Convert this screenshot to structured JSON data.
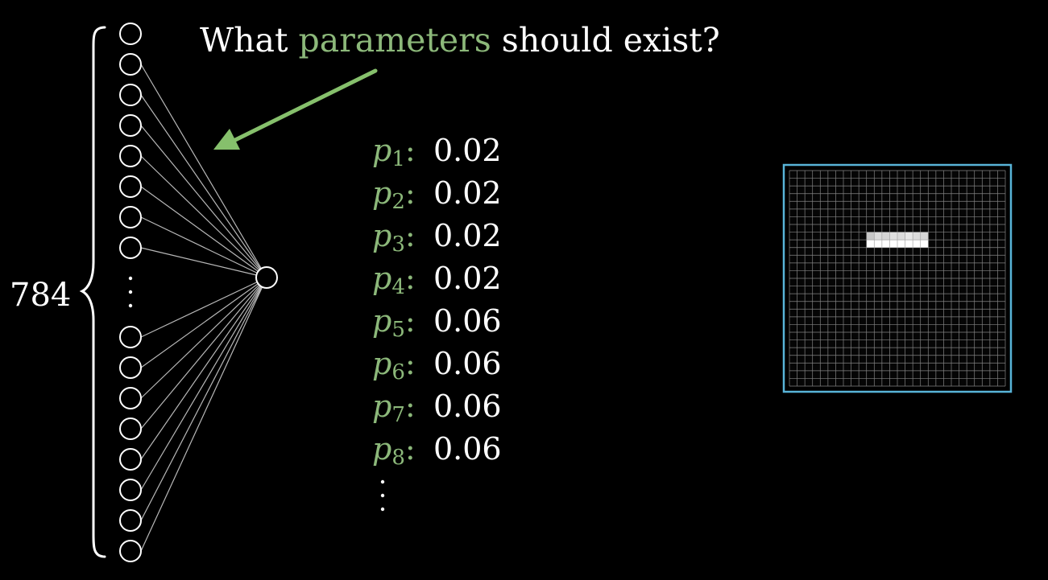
{
  "question": {
    "before": "What ",
    "highlight": "parameters",
    "after": " should exist?"
  },
  "input_count_label": "784",
  "parameters": [
    {
      "symbol": "p",
      "subscript": "1",
      "value": "0.02"
    },
    {
      "symbol": "p",
      "subscript": "2",
      "value": "0.02"
    },
    {
      "symbol": "p",
      "subscript": "3",
      "value": "0.02"
    },
    {
      "symbol": "p",
      "subscript": "4",
      "value": "0.02"
    },
    {
      "symbol": "p",
      "subscript": "5",
      "value": "0.06"
    },
    {
      "symbol": "p",
      "subscript": "6",
      "value": "0.06"
    },
    {
      "symbol": "p",
      "subscript": "7",
      "value": "0.06"
    },
    {
      "symbol": "p",
      "subscript": "8",
      "value": "0.06"
    }
  ],
  "network": {
    "visible_inputs_top": 8,
    "visible_inputs_bottom": 8,
    "output_neurons": 1
  },
  "pixel_grid": {
    "rows": 28,
    "cols": 28,
    "lit_cells": [
      {
        "row": 8,
        "col": 10,
        "brightness": 0.78
      },
      {
        "row": 8,
        "col": 11,
        "brightness": 0.86
      },
      {
        "row": 8,
        "col": 12,
        "brightness": 0.84
      },
      {
        "row": 8,
        "col": 13,
        "brightness": 0.88
      },
      {
        "row": 8,
        "col": 14,
        "brightness": 0.86
      },
      {
        "row": 8,
        "col": 15,
        "brightness": 0.9
      },
      {
        "row": 8,
        "col": 16,
        "brightness": 0.86
      },
      {
        "row": 8,
        "col": 17,
        "brightness": 0.84
      },
      {
        "row": 9,
        "col": 10,
        "brightness": 1.0
      },
      {
        "row": 9,
        "col": 11,
        "brightness": 1.0
      },
      {
        "row": 9,
        "col": 12,
        "brightness": 1.0
      },
      {
        "row": 9,
        "col": 13,
        "brightness": 1.0
      },
      {
        "row": 9,
        "col": 14,
        "brightness": 1.0
      },
      {
        "row": 9,
        "col": 15,
        "brightness": 1.0
      },
      {
        "row": 9,
        "col": 16,
        "brightness": 1.0
      },
      {
        "row": 9,
        "col": 17,
        "brightness": 1.0
      }
    ]
  },
  "colors": {
    "background": "#000000",
    "text": "#ffffff",
    "parameter_green": "#8cb87a",
    "arrow_green": "#86c06c",
    "frame_blue": "#58b4d8",
    "connection_gray": "#b8b8b8"
  }
}
